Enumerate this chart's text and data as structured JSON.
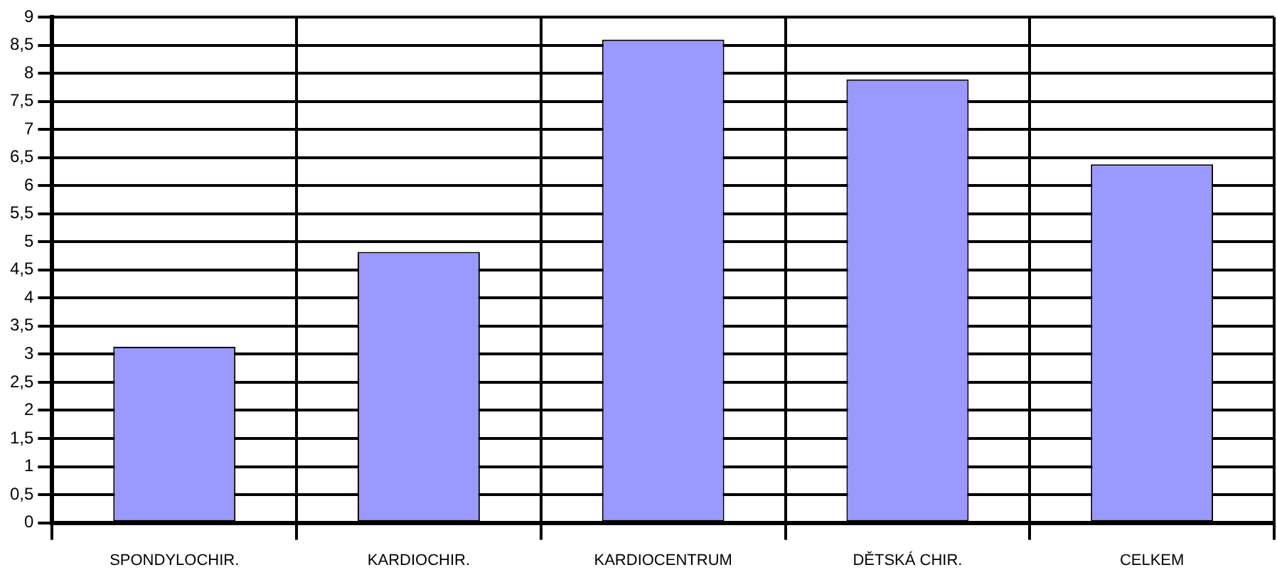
{
  "chart_data": {
    "type": "bar",
    "categories": [
      "SPONDYLOCHIR.",
      "KARDIOCHIR.",
      "KARDIOCENTRUM",
      "DĚTSKÁ CHIR.",
      "CELKEM"
    ],
    "values": [
      3.13,
      4.82,
      8.6,
      7.89,
      6.38
    ],
    "color": "#9999ff",
    "ylim": [
      0,
      9
    ],
    "yticks": [
      0,
      {
        "value": 0.5,
        "label": "0,5"
      },
      1,
      {
        "value": 1.5,
        "label": "1,5"
      },
      2,
      {
        "value": 2.5,
        "label": "2,5"
      },
      3,
      {
        "value": 3.5,
        "label": "3,5"
      },
      4,
      {
        "value": 4.5,
        "label": "4,5"
      },
      5,
      {
        "value": 5.5,
        "label": "5,5"
      },
      6,
      {
        "value": 6.5,
        "label": "6,5"
      },
      7,
      {
        "value": 7.5,
        "label": "7,5"
      },
      8,
      {
        "value": 8.5,
        "label": "8,5"
      },
      9
    ],
    "grid": true
  }
}
